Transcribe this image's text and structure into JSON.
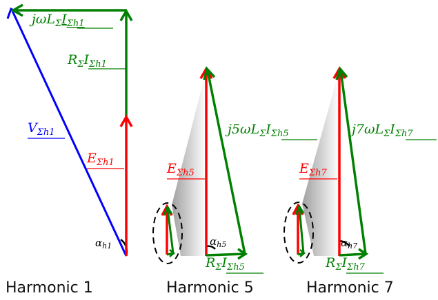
{
  "colors": {
    "voltage": "#0000ff",
    "emf": "#ff0000",
    "impedance": "#008000",
    "angle": "#000000"
  },
  "panels": [
    {
      "title": "Harmonic 1",
      "labels": {
        "jwl": {
          "pre": "jωL",
          "sigma": "Σ",
          "current": "I",
          "sub": "Σh1"
        },
        "r": {
          "pre": "R",
          "sigma": "Σ",
          "current": "I",
          "sub": "Σh1"
        },
        "v": {
          "main": "V",
          "sub": "Σh1"
        },
        "e": {
          "main": "E",
          "sub": "Σh1"
        },
        "angle": {
          "main": "α",
          "sub": "h1"
        }
      }
    },
    {
      "title": "Harmonic 5",
      "labels": {
        "jwl": {
          "pre": "j5ωL",
          "sigma": "Σ",
          "current": "I",
          "sub": "Σh5"
        },
        "r": {
          "pre": "R",
          "sigma": "Σ",
          "current": "I",
          "sub": "Σh5"
        },
        "e": {
          "main": "E",
          "sub": "Σh5"
        },
        "angle": {
          "main": "α",
          "sub": "h5"
        }
      }
    },
    {
      "title": "Harmonic 7",
      "labels": {
        "jwl": {
          "pre": "j7ωL",
          "sigma": "Σ",
          "current": "I",
          "sub": "Σh7"
        },
        "r": {
          "pre": "R",
          "sigma": "Σ",
          "current": "I",
          "sub": "Σh7"
        },
        "e": {
          "main": "E",
          "sub": "Σh7"
        },
        "angle": {
          "main": "α",
          "sub": "h7"
        }
      }
    }
  ]
}
